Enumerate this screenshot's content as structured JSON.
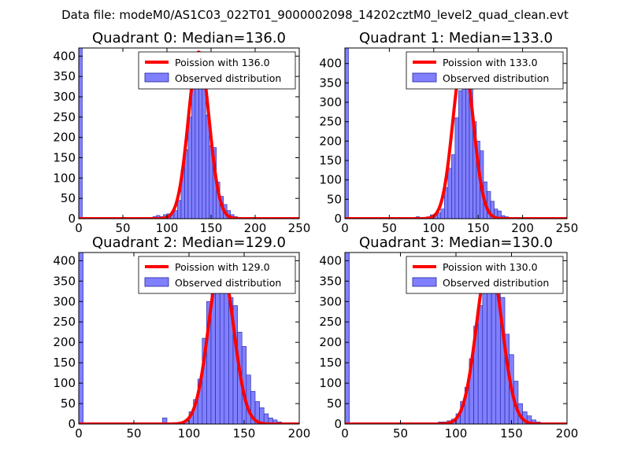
{
  "chart_data": {
    "suptitle": "Data file: modeM0/AS1C03_022T01_9000002098_14202cztM0_level2_quad_clean.evt",
    "colors": {
      "hist_fill": "#8080ff",
      "hist_edge": "#2020a0",
      "poisson_line": "#ff0000",
      "axes": "#000000",
      "background": "#ffffff"
    },
    "panels": [
      {
        "type": "histogram",
        "title": "Quadrant 0: Median=136.0",
        "xlim": [
          0,
          250
        ],
        "ylim": [
          0,
          420
        ],
        "xticks": [
          0,
          50,
          100,
          150,
          200,
          250
        ],
        "xtick_labels": [
          "0",
          "50",
          "100",
          "150",
          "200",
          "250"
        ],
        "yticks": [
          0,
          50,
          100,
          150,
          200,
          250,
          300,
          350,
          400
        ],
        "ytick_labels": [
          "0",
          "50",
          "100",
          "150",
          "200",
          "250",
          "300",
          "350",
          "400"
        ],
        "legend": [
          "Poission with 136.0",
          "Observed distribution"
        ],
        "median": 136.0,
        "poisson_peak": 410,
        "bin_width": 4,
        "bins": [
          [
            0,
            420
          ],
          [
            80,
            2
          ],
          [
            84,
            5
          ],
          [
            88,
            8
          ],
          [
            92,
            5
          ],
          [
            96,
            10
          ],
          [
            100,
            12
          ],
          [
            104,
            10
          ],
          [
            108,
            20
          ],
          [
            112,
            45
          ],
          [
            116,
            120
          ],
          [
            120,
            170
          ],
          [
            124,
            250
          ],
          [
            128,
            340
          ],
          [
            132,
            345
          ],
          [
            136,
            330
          ],
          [
            140,
            320
          ],
          [
            144,
            255
          ],
          [
            148,
            180
          ],
          [
            152,
            175
          ],
          [
            156,
            90
          ],
          [
            160,
            55
          ],
          [
            164,
            35
          ],
          [
            168,
            20
          ],
          [
            172,
            10
          ],
          [
            176,
            5
          ],
          [
            180,
            3
          ],
          [
            184,
            2
          ],
          [
            188,
            2
          ],
          [
            200,
            1
          ],
          [
            208,
            1
          ]
        ]
      },
      {
        "type": "histogram",
        "title": "Quadrant 1: Median=133.0",
        "xlim": [
          0,
          250
        ],
        "ylim": [
          0,
          440
        ],
        "xticks": [
          0,
          50,
          100,
          150,
          200,
          250
        ],
        "xtick_labels": [
          "0",
          "50",
          "100",
          "150",
          "200",
          "250"
        ],
        "yticks": [
          0,
          50,
          100,
          150,
          200,
          250,
          300,
          350,
          400
        ],
        "ytick_labels": [
          "0",
          "50",
          "100",
          "150",
          "200",
          "250",
          "300",
          "350",
          "400"
        ],
        "legend": [
          "Poission with 133.0",
          "Observed distribution"
        ],
        "median": 133.0,
        "poisson_peak": 415,
        "bin_width": 4,
        "bins": [
          [
            0,
            440
          ],
          [
            80,
            5
          ],
          [
            92,
            5
          ],
          [
            96,
            10
          ],
          [
            100,
            12
          ],
          [
            104,
            15
          ],
          [
            108,
            25
          ],
          [
            112,
            80
          ],
          [
            116,
            130
          ],
          [
            120,
            165
          ],
          [
            124,
            260
          ],
          [
            128,
            330
          ],
          [
            132,
            360
          ],
          [
            136,
            350
          ],
          [
            140,
            345
          ],
          [
            144,
            250
          ],
          [
            148,
            200
          ],
          [
            152,
            175
          ],
          [
            156,
            95
          ],
          [
            160,
            70
          ],
          [
            164,
            45
          ],
          [
            168,
            25
          ],
          [
            172,
            20
          ],
          [
            176,
            8
          ],
          [
            180,
            5
          ],
          [
            184,
            3
          ],
          [
            188,
            2
          ]
        ]
      },
      {
        "type": "histogram",
        "title": "Quadrant 2: Median=129.0",
        "xlim": [
          0,
          200
        ],
        "ylim": [
          0,
          420
        ],
        "xticks": [
          0,
          50,
          100,
          150,
          200
        ],
        "xtick_labels": [
          "0",
          "50",
          "100",
          "150",
          "200"
        ],
        "yticks": [
          0,
          50,
          100,
          150,
          200,
          250,
          300,
          350,
          400
        ],
        "ytick_labels": [
          "0",
          "50",
          "100",
          "150",
          "200",
          "250",
          "300",
          "350",
          "400"
        ],
        "legend": [
          "Poission with 129.0",
          "Observed distribution"
        ],
        "median": 129.0,
        "poisson_peak": 395,
        "bin_width": 4,
        "bins": [
          [
            0,
            420
          ],
          [
            76,
            15
          ],
          [
            92,
            5
          ],
          [
            96,
            10
          ],
          [
            100,
            30
          ],
          [
            104,
            60
          ],
          [
            108,
            110
          ],
          [
            112,
            210
          ],
          [
            116,
            300
          ],
          [
            120,
            340
          ],
          [
            124,
            330
          ],
          [
            128,
            375
          ],
          [
            132,
            350
          ],
          [
            136,
            310
          ],
          [
            140,
            290
          ],
          [
            144,
            225
          ],
          [
            148,
            190
          ],
          [
            152,
            120
          ],
          [
            156,
            80
          ],
          [
            160,
            55
          ],
          [
            164,
            40
          ],
          [
            168,
            25
          ],
          [
            172,
            15
          ],
          [
            176,
            10
          ],
          [
            180,
            5
          ],
          [
            184,
            3
          ],
          [
            188,
            2
          ]
        ]
      },
      {
        "type": "histogram",
        "title": "Quadrant 3: Median=130.0",
        "xlim": [
          0,
          200
        ],
        "ylim": [
          0,
          420
        ],
        "xticks": [
          0,
          50,
          100,
          150,
          200
        ],
        "xtick_labels": [
          "0",
          "50",
          "100",
          "150",
          "200"
        ],
        "yticks": [
          0,
          50,
          100,
          150,
          200,
          250,
          300,
          350,
          400
        ],
        "ytick_labels": [
          "0",
          "50",
          "100",
          "150",
          "200",
          "250",
          "300",
          "350",
          "400"
        ],
        "legend": [
          "Poission with 130.0",
          "Observed distribution"
        ],
        "median": 130.0,
        "poisson_peak": 405,
        "bin_width": 4,
        "bins": [
          [
            0,
            420
          ],
          [
            72,
            3
          ],
          [
            84,
            5
          ],
          [
            88,
            5
          ],
          [
            92,
            8
          ],
          [
            96,
            12
          ],
          [
            100,
            25
          ],
          [
            104,
            55
          ],
          [
            108,
            90
          ],
          [
            112,
            160
          ],
          [
            116,
            240
          ],
          [
            120,
            290
          ],
          [
            124,
            320
          ],
          [
            128,
            345
          ],
          [
            132,
            370
          ],
          [
            136,
            355
          ],
          [
            140,
            310
          ],
          [
            144,
            220
          ],
          [
            148,
            170
          ],
          [
            152,
            105
          ],
          [
            156,
            50
          ],
          [
            160,
            30
          ],
          [
            164,
            20
          ],
          [
            168,
            10
          ],
          [
            172,
            5
          ],
          [
            176,
            3
          ],
          [
            180,
            2
          ]
        ]
      }
    ]
  }
}
